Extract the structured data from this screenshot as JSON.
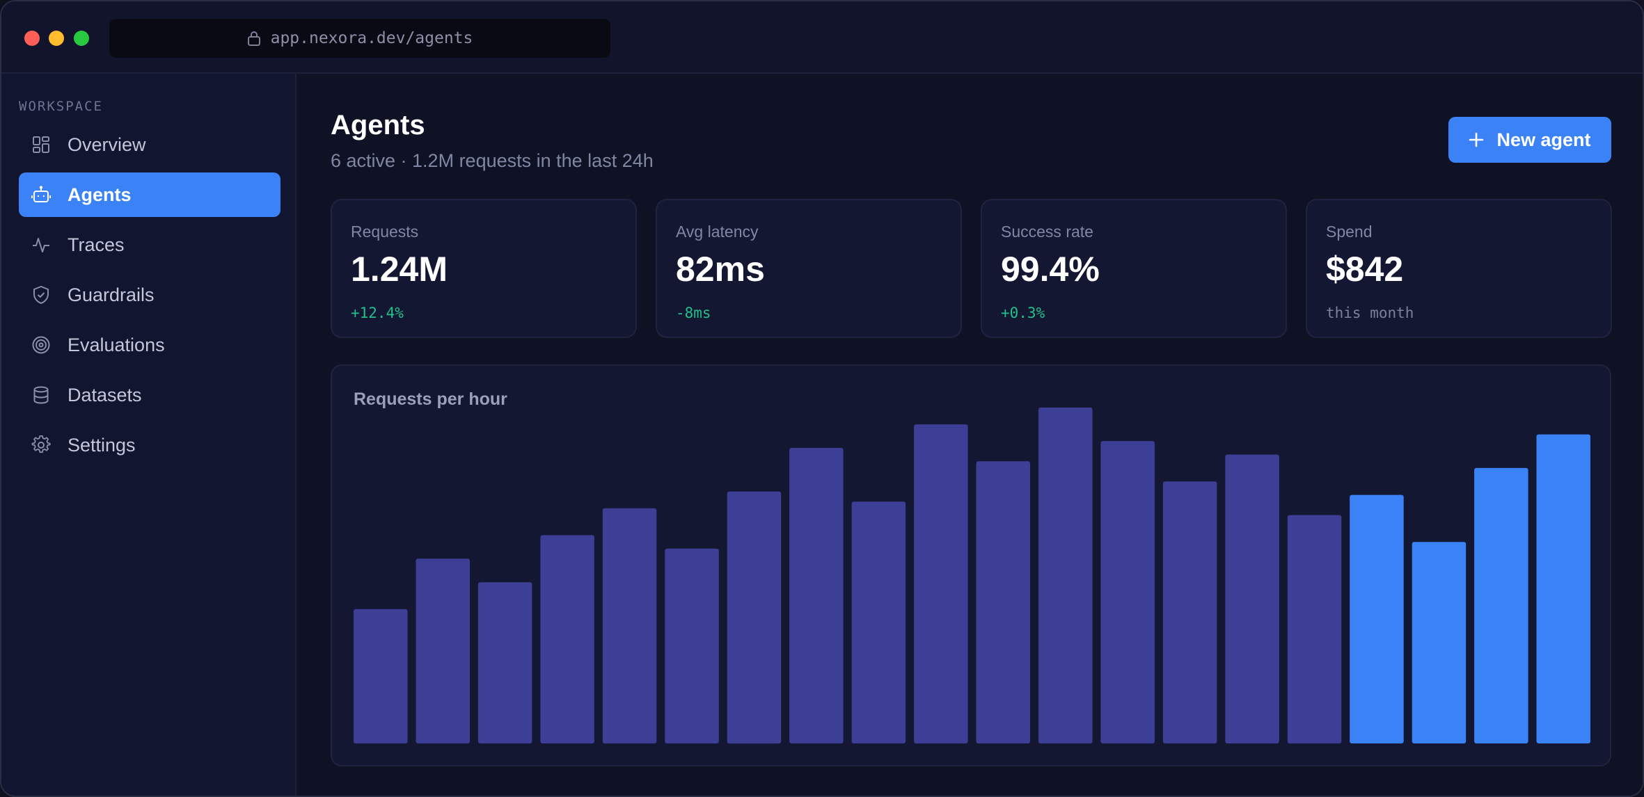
{
  "browser": {
    "url": "app.nexora.dev/agents"
  },
  "sidebar": {
    "section_label": "WORKSPACE",
    "items": [
      {
        "label": "Overview",
        "icon": "grid-icon",
        "active": false
      },
      {
        "label": "Agents",
        "icon": "bot-icon",
        "active": true
      },
      {
        "label": "Traces",
        "icon": "activity-icon",
        "active": false
      },
      {
        "label": "Guardrails",
        "icon": "shield-check-icon",
        "active": false
      },
      {
        "label": "Evaluations",
        "icon": "target-icon",
        "active": false
      },
      {
        "label": "Datasets",
        "icon": "database-icon",
        "active": false
      },
      {
        "label": "Settings",
        "icon": "gear-icon",
        "active": false
      }
    ]
  },
  "header": {
    "title": "Agents",
    "subtitle": "6 active · 1.2M requests in the last 24h",
    "new_button_label": "New agent"
  },
  "stats": [
    {
      "label": "Requests",
      "value": "1.24M",
      "delta": "+12.4%",
      "delta_color": "#22c08a"
    },
    {
      "label": "Avg latency",
      "value": "82ms",
      "delta": "-8ms",
      "delta_color": "#22c08a"
    },
    {
      "label": "Success rate",
      "value": "99.4%",
      "delta": "+0.3%",
      "delta_color": "#22c08a"
    },
    {
      "label": "Spend",
      "value": "$842",
      "delta": "this month",
      "delta_color": "#7c8198"
    }
  ],
  "colors": {
    "accent": "#3b82f6",
    "bar_past": "#3d3f96",
    "bar_recent": "#3b82f6"
  },
  "chart_data": {
    "type": "bar",
    "title": "Requests per hour",
    "xlabel": "",
    "ylabel": "",
    "ylim": [
      0,
      100
    ],
    "values": [
      40,
      55,
      48,
      62,
      70,
      58,
      75,
      88,
      72,
      95,
      84,
      100,
      90,
      78,
      86,
      68,
      74,
      60,
      82,
      92
    ],
    "highlight_from_index": 16
  }
}
